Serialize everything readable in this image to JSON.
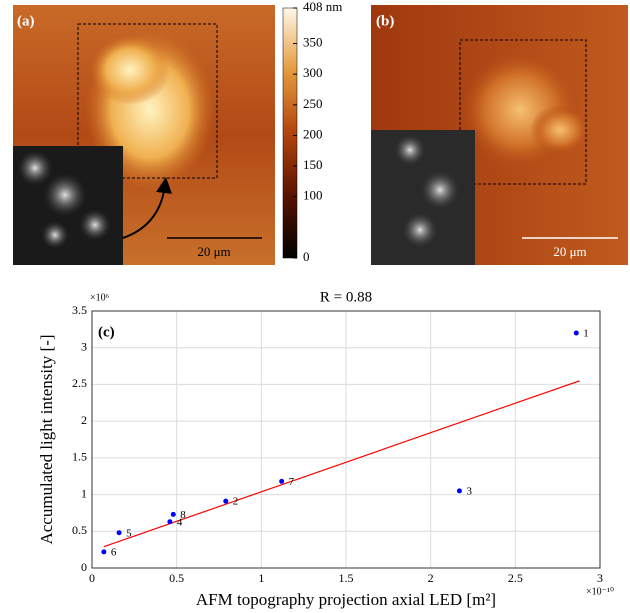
{
  "chart_data": [
    {
      "type": "image",
      "panel_labels": [
        "(a)",
        "(b)"
      ],
      "scale_bar_labels": [
        "20 μm",
        "20 μm"
      ],
      "clim": [
        0,
        408
      ],
      "colorbar_ticks": [
        0,
        100,
        150,
        200,
        250,
        300,
        350,
        {
          "value": 408,
          "label": "408 nm"
        }
      ]
    },
    {
      "type": "scatter",
      "title": "R = 0.88",
      "panel_label": "(c)",
      "x_label": "AFM topography projection axial LED [m²]",
      "y_label": "Accumulated light intensity [-]",
      "x_exponent": "×10⁻¹⁰",
      "y_exponent": "×10⁶",
      "xlim": [
        0,
        3
      ],
      "xticks": [
        0,
        0.5,
        1,
        1.5,
        2,
        2.5,
        3
      ],
      "ylim": [
        0,
        3.5
      ],
      "yticks": [
        0,
        0.5,
        1,
        1.5,
        2,
        2.5,
        3,
        3.5
      ],
      "grid": true,
      "series": [
        {
          "color": "#0000ff",
          "x": [
            2.86,
            0.79,
            2.17,
            0.46,
            0.16,
            0.07,
            1.12,
            0.48
          ],
          "values": [
            3.2,
            0.91,
            1.05,
            0.63,
            0.48,
            0.22,
            1.18,
            0.73
          ],
          "point_labels": [
            "1",
            "2",
            "3",
            "4",
            "5",
            "6",
            "7",
            "8"
          ]
        }
      ],
      "fit": {
        "color": "#ff0000",
        "x": [
          0.07,
          2.88
        ],
        "values": [
          0.29,
          2.55
        ]
      }
    }
  ]
}
